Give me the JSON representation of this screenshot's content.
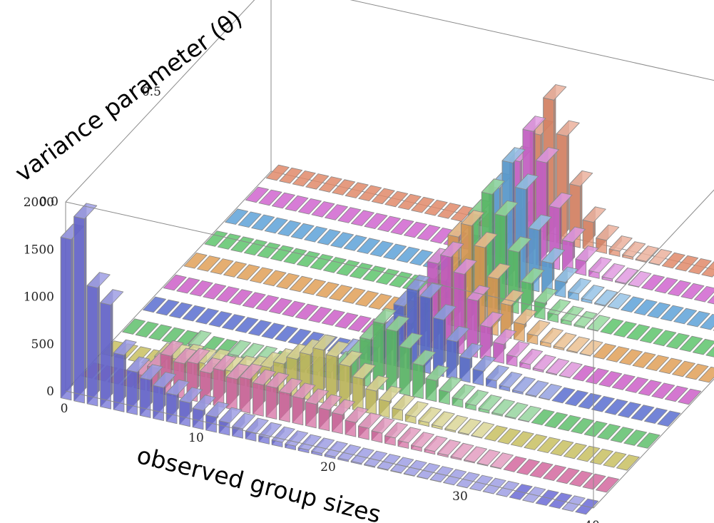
{
  "chart_data": {
    "type": "bar3d",
    "xlabel": "observed group sizes",
    "ylabel": "variance parameter (θ)",
    "zlabel": "",
    "x_ticks": [
      "0",
      "10",
      "20",
      "30",
      "40"
    ],
    "y_ticks": [
      "0.0",
      "0.5",
      "1.0"
    ],
    "z_ticks": [
      "0",
      "500",
      "1000",
      "1500",
      "2000"
    ],
    "xlim": [
      0,
      40
    ],
    "ylim": [
      0,
      1
    ],
    "zlim": [
      0,
      2000
    ],
    "series": [
      {
        "theta": 0.0,
        "color": "#6b6bd6",
        "values": [
          1700,
          1950,
          1250,
          1100,
          600,
          450,
          400,
          350,
          300,
          250,
          200,
          160,
          130,
          100,
          80,
          65,
          50,
          40,
          30,
          25,
          20,
          15,
          12,
          10,
          8,
          6,
          5,
          4,
          3,
          2,
          2,
          1,
          1,
          1,
          0,
          1,
          0,
          0,
          1,
          0
        ]
      },
      {
        "theta": 0.1,
        "color": "#d4699f",
        "values": [
          0,
          0,
          0,
          0,
          150,
          260,
          420,
          370,
          400,
          330,
          390,
          330,
          360,
          330,
          330,
          300,
          280,
          250,
          220,
          200,
          150,
          120,
          100,
          80,
          60,
          40,
          30,
          20,
          15,
          10,
          8,
          6,
          0,
          0,
          0,
          0,
          0,
          0,
          0,
          0
        ]
      },
      {
        "theta": 0.2,
        "color": "#c8c061",
        "values": [
          0,
          0,
          0,
          0,
          100,
          120,
          150,
          140,
          160,
          120,
          150,
          180,
          250,
          320,
          400,
          480,
          560,
          520,
          450,
          350,
          250,
          170,
          110,
          70,
          40,
          25,
          15,
          10,
          5,
          0,
          0,
          0,
          0,
          0,
          0,
          0,
          0,
          0,
          0,
          0
        ]
      },
      {
        "theta": 0.3,
        "color": "#5fbf6c",
        "values": [
          0,
          0,
          0,
          0,
          0,
          30,
          0,
          0,
          20,
          20,
          20,
          0,
          0,
          20,
          30,
          60,
          150,
          300,
          500,
          700,
          650,
          500,
          350,
          220,
          130,
          80,
          50,
          30,
          15,
          10,
          5,
          0,
          0,
          0,
          0,
          0,
          0,
          0,
          0,
          0
        ]
      },
      {
        "theta": 0.4,
        "color": "#5a6fd0",
        "values": [
          0,
          0,
          0,
          0,
          0,
          0,
          0,
          0,
          0,
          0,
          0,
          0,
          0,
          0,
          0,
          20,
          50,
          150,
          350,
          650,
          850,
          800,
          600,
          400,
          250,
          150,
          80,
          40,
          20,
          10,
          5,
          0,
          0,
          0,
          0,
          0,
          0,
          0,
          0,
          0
        ]
      },
      {
        "theta": 0.5,
        "color": "#cc5fc8",
        "values": [
          0,
          0,
          0,
          0,
          0,
          0,
          0,
          0,
          0,
          0,
          0,
          0,
          0,
          0,
          0,
          0,
          0,
          50,
          200,
          500,
          900,
          1000,
          850,
          600,
          350,
          200,
          100,
          50,
          20,
          10,
          5,
          0,
          0,
          0,
          0,
          0,
          0,
          0,
          0,
          0
        ]
      },
      {
        "theta": 0.6,
        "color": "#e0a058",
        "values": [
          0,
          0,
          0,
          0,
          0,
          0,
          0,
          0,
          0,
          0,
          0,
          0,
          0,
          0,
          0,
          0,
          0,
          0,
          100,
          450,
          950,
          1100,
          900,
          600,
          350,
          180,
          90,
          40,
          20,
          10,
          5,
          0,
          0,
          0,
          0,
          0,
          0,
          0,
          0,
          0
        ]
      },
      {
        "theta": 0.7,
        "color": "#5ec46c",
        "values": [
          0,
          0,
          0,
          0,
          0,
          0,
          0,
          0,
          0,
          0,
          0,
          0,
          0,
          0,
          0,
          0,
          0,
          0,
          0,
          350,
          950,
          1200,
          1000,
          650,
          350,
          170,
          80,
          40,
          15,
          5,
          0,
          0,
          0,
          0,
          0,
          0,
          0,
          0,
          0,
          0
        ]
      },
      {
        "theta": 0.8,
        "color": "#5ea2d8",
        "values": [
          0,
          0,
          0,
          0,
          0,
          0,
          0,
          0,
          0,
          0,
          0,
          0,
          0,
          0,
          0,
          0,
          0,
          0,
          0,
          300,
          1000,
          1300,
          1050,
          650,
          330,
          160,
          70,
          30,
          10,
          5,
          0,
          0,
          0,
          0,
          0,
          0,
          0,
          0,
          0,
          0
        ]
      },
      {
        "theta": 0.9,
        "color": "#d065cf",
        "values": [
          0,
          0,
          0,
          0,
          0,
          0,
          0,
          0,
          0,
          0,
          0,
          0,
          0,
          0,
          0,
          0,
          0,
          0,
          0,
          250,
          1050,
          1400,
          1100,
          650,
          320,
          150,
          60,
          25,
          10,
          5,
          0,
          0,
          0,
          0,
          0,
          0,
          0,
          0,
          0,
          0
        ]
      },
      {
        "theta": 1.0,
        "color": "#e0896a",
        "values": [
          0,
          0,
          0,
          0,
          0,
          0,
          0,
          0,
          0,
          0,
          0,
          0,
          0,
          0,
          0,
          0,
          0,
          0,
          0,
          200,
          1100,
          1500,
          1150,
          650,
          300,
          140,
          55,
          25,
          10,
          5,
          0,
          0,
          0,
          0,
          0,
          0,
          0,
          0,
          0,
          0
        ]
      }
    ]
  }
}
